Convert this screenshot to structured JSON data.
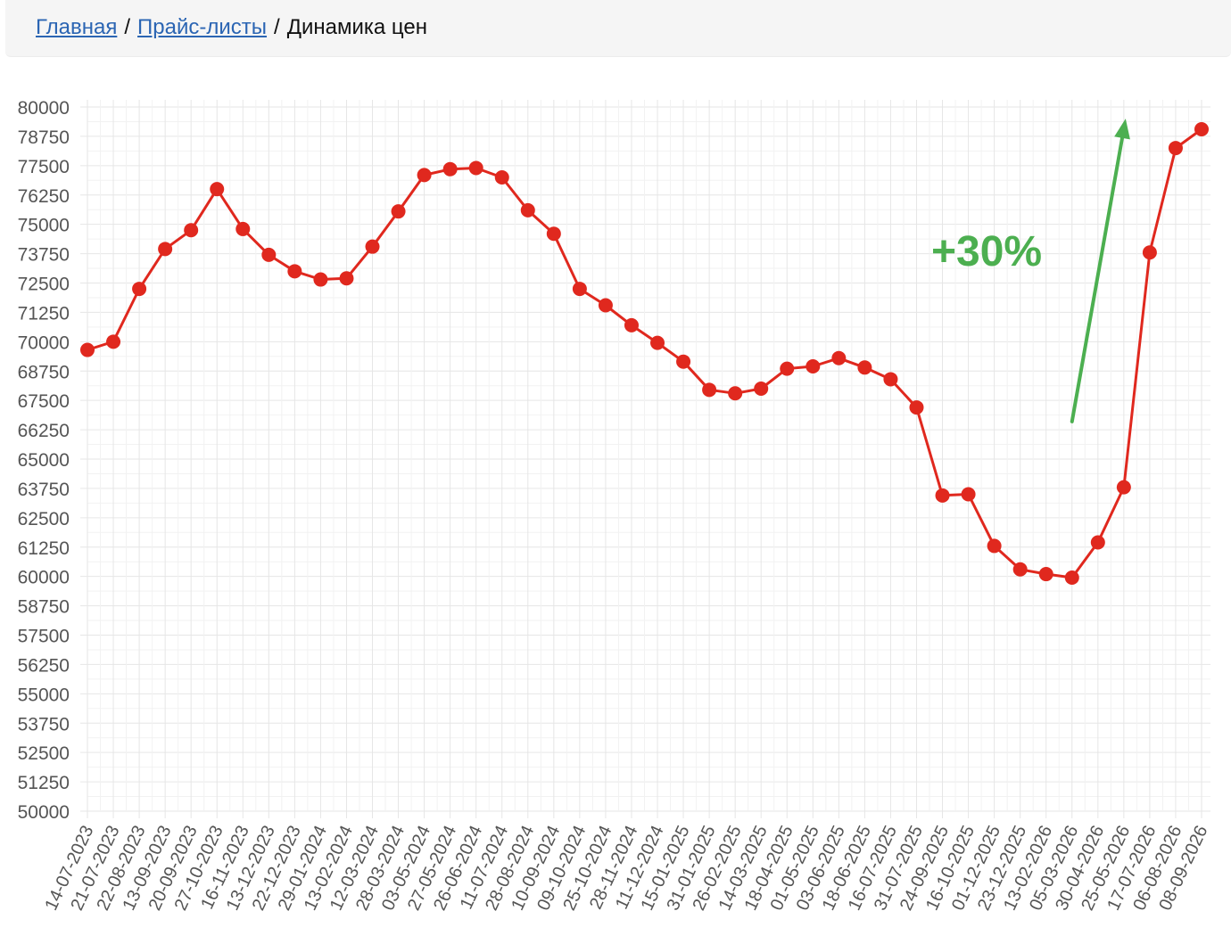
{
  "breadcrumb": {
    "home": "Главная",
    "pricelists": "Прайс-листы",
    "separator": "/",
    "current": "Динамика цен"
  },
  "colors": {
    "line": "#e0281e",
    "arrow": "#4caf50",
    "grid": "#e6e6e6",
    "link": "#2b65b3"
  },
  "chart_data": {
    "type": "line",
    "title": "",
    "xlabel": "",
    "ylabel": "",
    "ylim": [
      50000,
      80000
    ],
    "y_ticks": [
      80000,
      78750,
      77500,
      76250,
      75000,
      73750,
      72500,
      71250,
      70000,
      68750,
      67500,
      66250,
      65000,
      63750,
      62500,
      61250,
      60000,
      58750,
      57500,
      56250,
      55000,
      53750,
      52500,
      51250,
      50000
    ],
    "grid": true,
    "categories": [
      "14-07-2023",
      "21-07-2023",
      "22-08-2023",
      "13-09-2023",
      "20-09-2023",
      "27-10-2023",
      "16-11-2023",
      "13-12-2023",
      "22-12-2023",
      "29-01-2024",
      "13-02-2024",
      "12-03-2024",
      "28-03-2024",
      "03-05-2024",
      "27-05-2024",
      "26-06-2024",
      "11-07-2024",
      "28-08-2024",
      "10-09-2024",
      "09-10-2024",
      "25-10-2024",
      "28-11-2024",
      "11-12-2024",
      "15-01-2025",
      "31-01-2025",
      "26-02-2025",
      "14-03-2025",
      "18-04-2025",
      "01-05-2025",
      "03-06-2025",
      "18-06-2025",
      "16-07-2025",
      "31-07-2025",
      "24-09-2025",
      "16-10-2025",
      "01-12-2025",
      "23-12-2025",
      "13-02-2026",
      "05-03-2026",
      "30-04-2026",
      "25-05-2026",
      "17-07-2026",
      "06-08-2026",
      "08-09-2026"
    ],
    "values": [
      69650,
      70000,
      72250,
      73950,
      74750,
      76500,
      74800,
      73700,
      73000,
      72650,
      72700,
      74050,
      75550,
      77100,
      77350,
      77400,
      77000,
      75600,
      74600,
      72250,
      71550,
      70700,
      69950,
      69150,
      67950,
      67800,
      68000,
      68850,
      68950,
      69300,
      68900,
      68400,
      67200,
      63450,
      63500,
      61300,
      60300,
      60100,
      59950,
      61450,
      63800,
      73800,
      78250,
      79050
    ],
    "annotation": {
      "text": "+30%",
      "arrow_from_category": "05-03-2026",
      "arrow_from_value": 66600,
      "arrow_to_category": "25-05-2026",
      "arrow_to_value": 79500
    }
  }
}
